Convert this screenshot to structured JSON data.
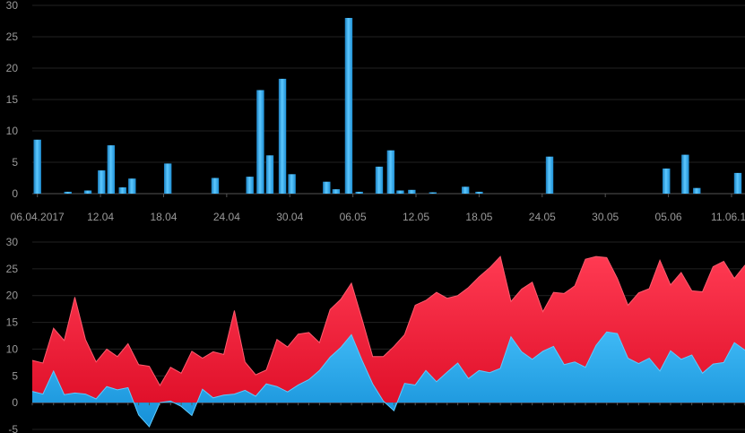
{
  "chart_data": [
    {
      "type": "bar",
      "title": "",
      "xlabel": "",
      "ylabel": "",
      "ylim": [
        0,
        30
      ],
      "y_ticks": [
        "0",
        "5",
        "10",
        "15",
        "20",
        "25",
        "30"
      ],
      "x_ticks": [
        {
          "label": "06.04.2017",
          "day": 0
        },
        {
          "label": "12.04",
          "day": 6
        },
        {
          "label": "18.04",
          "day": 12
        },
        {
          "label": "24.04",
          "day": 18
        },
        {
          "label": "30.04",
          "day": 24
        },
        {
          "label": "06.05",
          "day": 30
        },
        {
          "label": "12.05",
          "day": 36
        },
        {
          "label": "18.05",
          "day": 42
        },
        {
          "label": "24.05",
          "day": 48
        },
        {
          "label": "30.05",
          "day": 54
        },
        {
          "label": "05.06",
          "day": 60
        },
        {
          "label": "11.06.17",
          "day": 66
        }
      ],
      "day_range": [
        0,
        67
      ],
      "grid": true,
      "color": "#2aa7e6",
      "points": [
        [
          0.0,
          8.6
        ],
        [
          2.9,
          0.3
        ],
        [
          4.8,
          0.5
        ],
        [
          6.1,
          3.7
        ],
        [
          7.0,
          7.7
        ],
        [
          8.1,
          1.0
        ],
        [
          9.0,
          2.4
        ],
        [
          12.4,
          4.8
        ],
        [
          16.9,
          2.5
        ],
        [
          20.2,
          2.7
        ],
        [
          21.2,
          16.5
        ],
        [
          22.1,
          6.1
        ],
        [
          23.3,
          18.3
        ],
        [
          24.2,
          3.1
        ],
        [
          27.5,
          1.9
        ],
        [
          28.4,
          0.7
        ],
        [
          29.6,
          28.0
        ],
        [
          30.6,
          0.3
        ],
        [
          32.5,
          4.3
        ],
        [
          33.6,
          6.9
        ],
        [
          34.5,
          0.5
        ],
        [
          35.6,
          0.6
        ],
        [
          37.6,
          0.2
        ],
        [
          40.7,
          1.1
        ],
        [
          42.0,
          0.3
        ],
        [
          48.7,
          5.9
        ],
        [
          59.8,
          4.0
        ],
        [
          61.6,
          6.2
        ],
        [
          62.7,
          0.9
        ],
        [
          66.6,
          3.3
        ]
      ]
    },
    {
      "type": "area",
      "title": "",
      "xlabel": "",
      "ylabel": "",
      "ylim": [
        -5,
        30
      ],
      "y_ticks": [
        "-5",
        "0",
        "5",
        "10",
        "15",
        "20",
        "25",
        "30"
      ],
      "grid": true,
      "x_range": [
        0,
        80
      ],
      "series": [
        {
          "color": "#ff1f3d",
          "values": [
            7.9,
            7.4,
            13.9,
            11.6,
            19.7,
            11.8,
            7.6,
            10.0,
            8.6,
            11.0,
            7.1,
            6.8,
            3.2,
            6.6,
            5.5,
            9.6,
            8.3,
            9.5,
            9.0,
            17.2,
            7.6,
            5.2,
            6.1,
            11.8,
            10.4,
            12.8,
            13.1,
            11.2,
            17.4,
            19.3,
            22.3,
            15.6,
            8.6,
            8.6,
            10.5,
            12.7,
            18.2,
            19.1,
            20.6,
            19.5,
            20.0,
            21.5,
            23.5,
            25.2,
            27.3,
            18.9,
            21.2,
            22.5,
            17.0,
            20.6,
            20.4,
            21.8,
            26.8,
            27.3,
            27.1,
            23.2,
            18.2,
            20.5,
            21.3,
            26.6,
            22.0,
            24.3,
            20.9,
            20.7,
            25.4,
            26.4,
            23.2,
            25.7
          ]
        },
        {
          "color": "#22a9ea",
          "values": [
            2.1,
            1.6,
            5.9,
            1.5,
            1.8,
            1.6,
            0.7,
            3.0,
            2.4,
            2.8,
            -2.3,
            -4.5,
            0.0,
            0.3,
            -0.7,
            -2.4,
            2.5,
            0.9,
            1.4,
            1.6,
            2.3,
            1.2,
            3.5,
            3.0,
            2.0,
            3.3,
            4.3,
            6.0,
            8.5,
            10.3,
            12.7,
            7.9,
            3.5,
            0.3,
            -1.5,
            3.6,
            3.3,
            6.0,
            3.9,
            5.7,
            7.4,
            4.5,
            6.0,
            5.6,
            6.4,
            12.3,
            9.5,
            8.1,
            9.6,
            10.5,
            7.1,
            7.6,
            6.6,
            10.7,
            13.2,
            12.9,
            8.3,
            7.3,
            8.3,
            5.9,
            9.7,
            8.1,
            8.9,
            5.5,
            7.2,
            7.5,
            11.2,
            9.8
          ]
        }
      ]
    }
  ]
}
